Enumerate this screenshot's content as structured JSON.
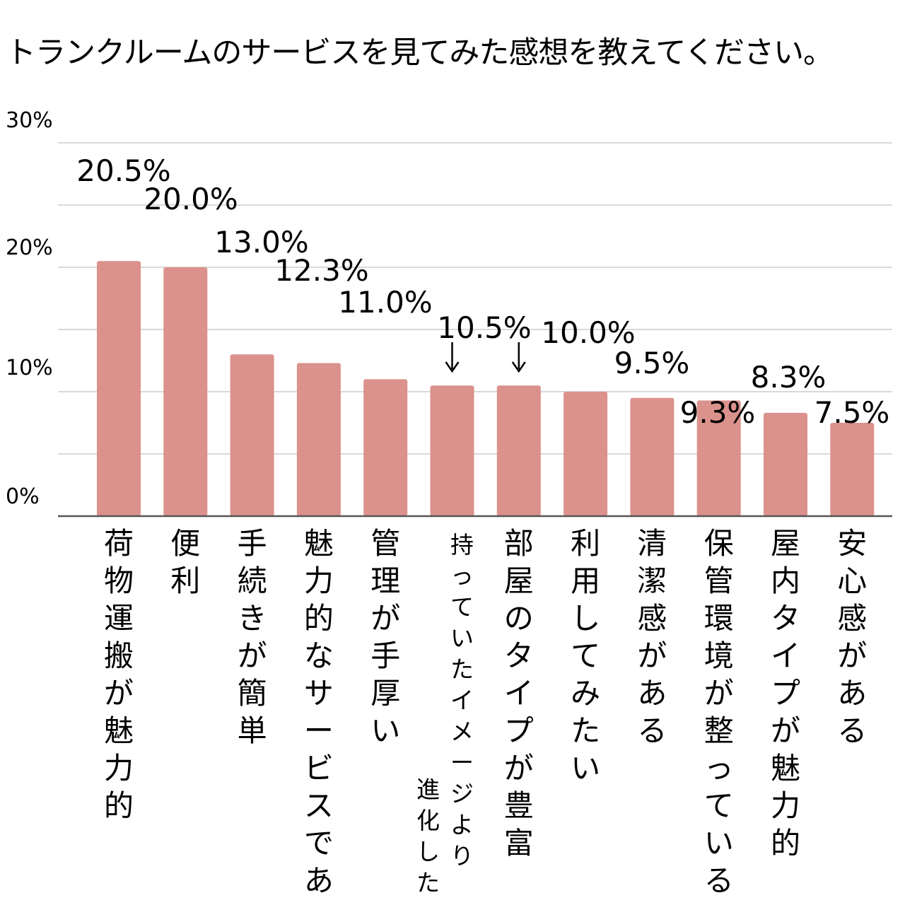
{
  "chart_data": {
    "type": "bar",
    "title": "トランクルームのサービスを見てみた感想を教えてください。",
    "xlabel": "",
    "ylabel": "",
    "ylim": [
      0,
      30
    ],
    "y_ticks": [
      "0%",
      "10%",
      "20%",
      "30%"
    ],
    "grid": true,
    "legend": "none",
    "bar_color": "#db918c",
    "categories": [
      "荷物運搬が魅力的",
      "便利",
      "手続きが簡単",
      "魅力的なサービスである",
      "管理が手厚い",
      "持っていたイメージより進化した",
      "部屋のタイプが豊富",
      "利用してみたい",
      "清潔感がある",
      "保管環境が整っている",
      "屋内タイプが魅力的",
      "安心感がある"
    ],
    "values": [
      20.5,
      20.0,
      13.0,
      12.3,
      11.0,
      10.5,
      10.5,
      10.0,
      9.5,
      9.3,
      8.3,
      7.5
    ],
    "data_labels": [
      "20.5%",
      "20.0%",
      "13.0%",
      "12.3%",
      "11.0%",
      "10.5%",
      "",
      "10.0%",
      "9.5%",
      "9.3%",
      "8.3%",
      "7.5%"
    ]
  }
}
